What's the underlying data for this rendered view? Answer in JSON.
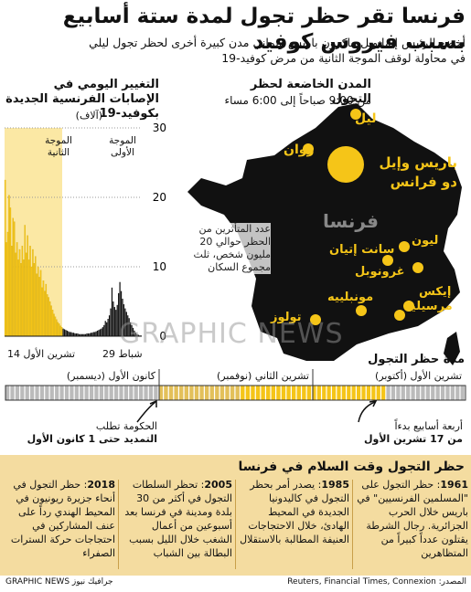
{
  "header": {
    "title": "فرنسا تقر حظر تجول لمدة ستة أسابيع بسبب فيروس كوفيد",
    "subtitle_line1": "أخضع الرئيس إيمانويل ماكرون باريس وثماني مدن كبيرة أخرى لحظر تجول ليلي",
    "subtitle_line2": "في محاولة لوقف الموجة الثانية من مرض كوفيد-19"
  },
  "map": {
    "heading": "المدن الخاضعة لحظر التجول",
    "subheading": "من 9:00 صباحاً إلى 6:00 مساء",
    "country_label": "فرنسا",
    "watermark": "GRAPHIC NEWS",
    "note": "عدد المتأثرين من الحظر حوالي 20 مليون شخص، ثلث مجموع السكان",
    "cities": [
      {
        "name": "ليل",
        "size": "small"
      },
      {
        "name": "روان",
        "size": "small"
      },
      {
        "name": "باريس وإيل دو فرانس",
        "size": "large"
      },
      {
        "name": "ليون",
        "size": "small"
      },
      {
        "name": "سانت إتيان",
        "size": "small"
      },
      {
        "name": "غرونوبل",
        "size": "small"
      },
      {
        "name": "إيكس",
        "size": "small"
      },
      {
        "name": "مرسيليا",
        "size": "small"
      },
      {
        "name": "مونبلييه",
        "size": "small"
      },
      {
        "name": "تولوز",
        "size": "small"
      }
    ],
    "city_color": "#f5c518",
    "land_color": "#111111"
  },
  "chart_data": {
    "type": "bar",
    "title": "التغيير اليومي في الإصابات الفرنسية الجديدة بكوفيد-19",
    "ylabel": "(آلاف)",
    "ylim": [
      0,
      30
    ],
    "yticks": [
      0,
      10,
      20,
      30
    ],
    "x_start_label": "29 شباط",
    "x_end_label": "14 تشرين الأول",
    "wave_labels": [
      "الموجة الأولى",
      "الموجة الثانية"
    ],
    "series": [
      {
        "values": [
          0.1,
          0.1,
          0.2,
          0.3,
          0.5,
          0.8,
          1.2,
          1.6,
          2.0,
          2.6,
          3.0,
          3.5,
          4.0,
          4.6,
          5.4,
          6.5,
          7.8,
          6.2,
          4.5,
          3.8,
          4.2,
          5.0,
          7.0,
          4.0,
          3.0,
          2.5,
          2.0,
          2.2,
          1.6,
          1.3,
          1.1,
          1.0,
          0.9,
          0.8,
          0.7,
          0.6,
          0.6,
          0.5,
          0.5,
          0.4,
          0.4,
          0.4,
          0.3,
          0.3,
          0.3,
          0.3,
          0.3,
          0.3,
          0.4,
          0.4,
          0.4,
          0.5,
          0.5,
          0.6,
          0.6,
          0.7,
          0.8,
          0.9,
          1.0,
          1.1,
          1.3,
          1.5,
          1.8,
          2.0,
          2.4,
          2.8,
          3.2,
          3.8,
          4.4,
          5.0,
          5.6,
          6.0,
          7.5,
          6.5,
          8.0,
          7.0,
          9.5,
          8.5,
          10.0,
          9.0,
          11.5,
          10.5,
          12.5,
          10.0,
          13.0,
          11.0,
          14.5,
          12.0,
          16.0,
          11.0,
          13.0,
          10.5,
          12.5,
          11.0,
          13.5,
          12.0,
          16.5,
          17.0,
          13.0,
          18.5,
          20.3,
          15.0,
          13.5,
          22.5
        ]
      }
    ],
    "bar_color": "#f5c518",
    "highlight_bg": "#f7d65a"
  },
  "timeline": {
    "heading": "مدة حظر التجول",
    "months": [
      "تشرين الأول (أكتوبر)",
      "تشرين الثاني (نوفمبر)",
      "كانون الأول (ديسمبر)"
    ],
    "note_right_line1": "أربعة أسابيع بدءاً",
    "note_right_line2": "من 17 تشرين الأول",
    "note_left_line1": "الحكومة تطلب",
    "note_left_line2": "التمديد حتى 1 كانون الأول",
    "fill_color": "#f5c518"
  },
  "history": {
    "heading": "حظر التجول وقت السلام في فرنسا",
    "bg_color": "#f4dca0",
    "items": [
      {
        "year": "1961",
        "text": "حظر التجول على \"المسلمين الفرنسيين\" في باريس خلال الحرب الجزائرية. رجال الشرطة يقتلون عدداً كبيراً من المتظاهرين"
      },
      {
        "year": "1985",
        "text": "يصدر أمر بحظر التجول في كاليدونيا الجديدة في المحيط الهادئ، خلال الاحتجاجات العنيفة المطالبة بالاستقلال"
      },
      {
        "year": "2005",
        "text": "تحظر السلطات التجول في أكثر من 30 بلدة ومدينة في فرنسا بعد أسبوعين من أعمال الشغب خلال الليل بسبب البطالة بين الشباب"
      },
      {
        "year": "2018",
        "text": "حظر التجول في أنحاء جزيرة ريونيون في المحيط الهندي رداً على عنف المشاركين في احتجاجات حركة السترات الصفراء"
      }
    ]
  },
  "footer": {
    "source": "المصدر: Reuters, Financial Times, Connexion",
    "credit": "GRAPHIC NEWS جرافيك نيوز"
  }
}
